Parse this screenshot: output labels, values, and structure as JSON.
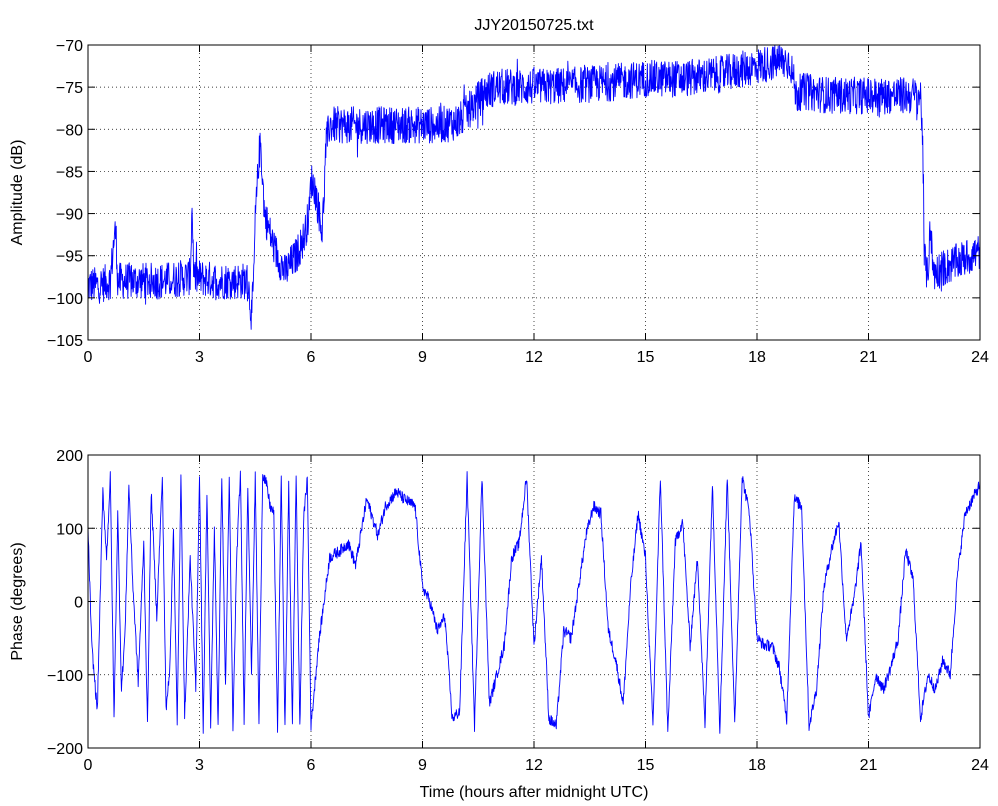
{
  "chart_data": [
    {
      "type": "line",
      "title": "JJY20150725.txt",
      "xlabel": "",
      "ylabel": "Amplitude (dB)",
      "xlim": [
        0,
        24
      ],
      "ylim": [
        -105,
        -70
      ],
      "xticks": [
        "0",
        "3",
        "6",
        "9",
        "12",
        "15",
        "18",
        "21",
        "24"
      ],
      "yticks": [
        "-105",
        "-100",
        "-95",
        "-90",
        "-85",
        "-80",
        "-75",
        "-70"
      ],
      "grid": true,
      "series_color": "#0000ff",
      "noise_amplitude": 2.2,
      "series": [
        {
          "x": [
            0,
            0.3,
            0.6,
            0.7,
            0.75,
            0.8,
            1.5,
            2.0,
            2.75,
            2.8,
            2.85,
            3.5,
            4.0,
            4.3,
            4.4,
            4.45,
            4.5,
            4.6,
            4.65,
            4.75,
            5.0,
            5.3,
            5.6,
            5.8,
            5.95,
            6.0,
            6.1,
            6.3,
            6.35,
            6.4,
            6.5,
            7.0,
            8.0,
            9.0,
            9.5,
            10.0,
            10.3,
            10.7,
            11.0,
            12.0,
            13.0,
            14.0,
            15.0,
            16.0,
            17.0,
            18.0,
            18.5,
            18.9,
            19.05,
            19.2,
            20.0,
            21.0,
            22.0,
            22.4,
            22.45,
            22.5,
            22.6,
            22.65,
            22.75,
            23.0,
            23.5,
            24.0
          ],
          "y": [
            -98.5,
            -98.5,
            -98.0,
            -93.0,
            -92.0,
            -98.0,
            -98.0,
            -98.0,
            -97.5,
            -89.0,
            -97.5,
            -98.0,
            -98.0,
            -98.0,
            -102.0,
            -99.0,
            -91.0,
            -83.0,
            -82.0,
            -90.0,
            -94.0,
            -97.0,
            -95.0,
            -93.0,
            -90.0,
            -86.0,
            -87.0,
            -92.0,
            -88.0,
            -82.0,
            -79.5,
            -79.5,
            -79.5,
            -79.5,
            -79.5,
            -79.0,
            -77.5,
            -75.5,
            -75.0,
            -75.0,
            -74.8,
            -74.5,
            -74.0,
            -74.0,
            -73.5,
            -72.5,
            -72.0,
            -72.0,
            -76.0,
            -75.5,
            -76.0,
            -76.0,
            -76.0,
            -76.0,
            -80.0,
            -95.0,
            -98.0,
            -91.0,
            -97.0,
            -96.5,
            -95.5,
            -94.5
          ]
        }
      ]
    },
    {
      "type": "line",
      "title": "",
      "xlabel": "Time (hours after midnight UTC)",
      "ylabel": "Phase (degrees)",
      "xlim": [
        0,
        24
      ],
      "ylim": [
        -200,
        200
      ],
      "xticks": [
        "0",
        "3",
        "6",
        "9",
        "12",
        "15",
        "18",
        "21",
        "24"
      ],
      "yticks": [
        "-200",
        "-100",
        "0",
        "100",
        "200"
      ],
      "grid": true,
      "series_color": "#0000ff",
      "series": [
        {
          "x": [
            0,
            0.1,
            0.25,
            0.4,
            0.5,
            0.6,
            0.7,
            0.8,
            0.9,
            1.0,
            1.1,
            1.2,
            1.35,
            1.5,
            1.6,
            1.7,
            1.85,
            2.0,
            2.1,
            2.2,
            2.3,
            2.4,
            2.5,
            2.6,
            2.75,
            2.9,
            3.0,
            3.1,
            3.2,
            3.3,
            3.4,
            3.5,
            3.6,
            3.7,
            3.8,
            3.9,
            4.0,
            4.1,
            4.2,
            4.3,
            4.4,
            4.5,
            4.6,
            4.7,
            4.8,
            4.9,
            5.0,
            5.1,
            5.2,
            5.3,
            5.4,
            5.5,
            5.6,
            5.7,
            5.8,
            5.9,
            6.0,
            6.2,
            6.5,
            6.8,
            7.0,
            7.2,
            7.5,
            7.8,
            8.0,
            8.3,
            8.5,
            8.8,
            9.0,
            9.2,
            9.4,
            9.6,
            9.8,
            10.0,
            10.2,
            10.4,
            10.6,
            10.8,
            11.0,
            11.2,
            11.4,
            11.6,
            11.8,
            12.0,
            12.2,
            12.4,
            12.6,
            12.8,
            13.0,
            13.2,
            13.4,
            13.6,
            13.8,
            14.0,
            14.2,
            14.4,
            14.6,
            14.8,
            15.0,
            15.2,
            15.4,
            15.6,
            15.8,
            16.0,
            16.2,
            16.4,
            16.6,
            16.8,
            17.0,
            17.2,
            17.4,
            17.6,
            17.8,
            18.0,
            18.2,
            18.4,
            18.6,
            18.8,
            19.0,
            19.2,
            19.4,
            19.6,
            19.8,
            20.0,
            20.2,
            20.4,
            20.6,
            20.8,
            21.0,
            21.2,
            21.4,
            21.6,
            21.8,
            22.0,
            22.2,
            22.4,
            22.6,
            22.8,
            23.0,
            23.2,
            23.4,
            23.6,
            23.8,
            24.0
          ],
          "y": [
            100,
            -60,
            -150,
            150,
            60,
            170,
            -160,
            120,
            -120,
            -40,
            160,
            30,
            -110,
            80,
            -170,
            150,
            -20,
            170,
            -150,
            -90,
            100,
            -170,
            170,
            -160,
            60,
            -120,
            175,
            -175,
            150,
            -170,
            100,
            -170,
            175,
            -120,
            170,
            -175,
            60,
            175,
            -160,
            160,
            -100,
            170,
            -170,
            175,
            160,
            130,
            120,
            -175,
            170,
            -175,
            160,
            -170,
            175,
            -175,
            110,
            170,
            -170,
            -60,
            60,
            70,
            80,
            50,
            140,
            90,
            130,
            150,
            140,
            130,
            20,
            0,
            -40,
            -20,
            -160,
            -150,
            170,
            -170,
            170,
            -140,
            -100,
            -60,
            60,
            80,
            170,
            -60,
            60,
            -160,
            -170,
            -40,
            -50,
            20,
            90,
            130,
            120,
            -40,
            -80,
            -140,
            20,
            120,
            60,
            -170,
            170,
            -180,
            80,
            110,
            -60,
            60,
            -170,
            160,
            -175,
            170,
            -170,
            170,
            120,
            -50,
            -60,
            -60,
            -90,
            -160,
            140,
            130,
            -170,
            -120,
            20,
            70,
            110,
            -50,
            0,
            80,
            -160,
            -100,
            -120,
            -90,
            -50,
            70,
            30,
            -160,
            -100,
            -120,
            -80,
            -100,
            40,
            120,
            140,
            160
          ]
        }
      ]
    }
  ]
}
